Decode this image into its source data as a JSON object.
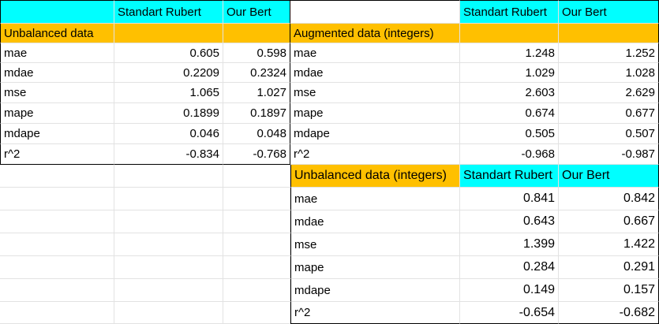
{
  "colors": {
    "header_cyan": "#00ffff",
    "section_orange": "#ffc000"
  },
  "table1": {
    "headers": [
      "Standart Rubert",
      "Our Bert"
    ],
    "title": "Unbalanced data",
    "rows": [
      [
        "mae",
        "0.605",
        "0.598"
      ],
      [
        "mdae",
        "0.2209",
        "0.2324"
      ],
      [
        "mse",
        "1.065",
        "1.027"
      ],
      [
        "mape",
        "0.1899",
        "0.1897"
      ],
      [
        "mdape",
        "0.046",
        "0.048"
      ],
      [
        "r^2",
        "-0.834",
        "-0.768"
      ]
    ]
  },
  "table2": {
    "headers": [
      "Standart Rubert",
      "Our Bert"
    ],
    "title": "Augmented data (integers)",
    "rows": [
      [
        "mae",
        "1.248",
        "1.252"
      ],
      [
        "mdae",
        "1.029",
        "1.028"
      ],
      [
        "mse",
        "2.603",
        "2.629"
      ],
      [
        "mape",
        "0.674",
        "0.677"
      ],
      [
        "mdape",
        "0.505",
        "0.507"
      ],
      [
        "r^2",
        "-0.968",
        "-0.987"
      ]
    ]
  },
  "table3": {
    "headers": [
      "Standart Rubert",
      "Our Bert"
    ],
    "title": "Unbalanced data (integers)",
    "rows": [
      [
        "mae",
        "0.841",
        "0.842"
      ],
      [
        "mdae",
        "0.643",
        "0.667"
      ],
      [
        "mse",
        "1.399",
        "1.422"
      ],
      [
        "mape",
        "0.284",
        "0.291"
      ],
      [
        "mdape",
        "0.149",
        "0.157"
      ],
      [
        "r^2",
        "-0.654",
        "-0.682"
      ]
    ]
  }
}
